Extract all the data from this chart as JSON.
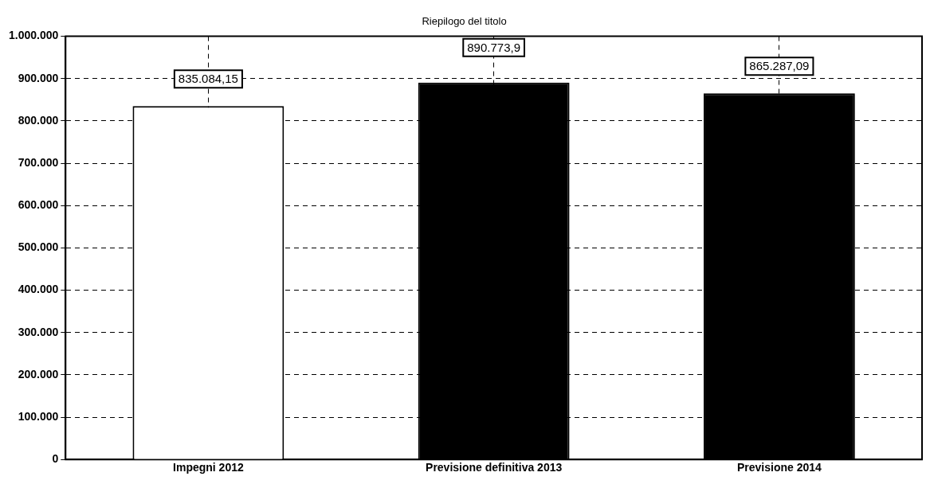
{
  "chart_data": {
    "type": "bar",
    "title": "Riepilogo del titolo",
    "categories": [
      "Impegni 2012",
      "Previsione definitiva 2013",
      "Previsione 2014"
    ],
    "values": [
      835084.15,
      890773.9,
      865287.09
    ],
    "colors": [
      "#ffffff",
      "#000000",
      "#000000"
    ],
    "value_labels": [
      "835.084,15",
      "890.773,9",
      "865.287,09"
    ],
    "ylim": [
      0,
      1000000
    ],
    "yticks": [
      {
        "value": 0,
        "label": "0"
      },
      {
        "value": 100000,
        "label": "100.000"
      },
      {
        "value": 200000,
        "label": "200.000"
      },
      {
        "value": 300000,
        "label": "300.000"
      },
      {
        "value": 400000,
        "label": "400.000"
      },
      {
        "value": 500000,
        "label": "500.000"
      },
      {
        "value": 600000,
        "label": "600.000"
      },
      {
        "value": 700000,
        "label": "700.000"
      },
      {
        "value": 800000,
        "label": "800.000"
      },
      {
        "value": 900000,
        "label": "900.000"
      },
      {
        "value": 1000000,
        "label": "1.000.000"
      }
    ],
    "grid": true,
    "legend": false
  }
}
